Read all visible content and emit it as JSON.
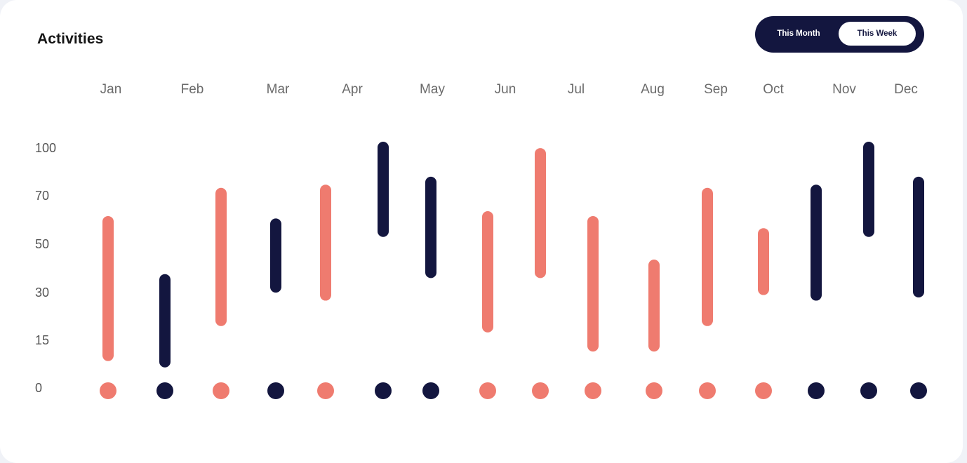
{
  "title": "Activities",
  "toggle": {
    "options": [
      "This Month",
      "This Week"
    ],
    "selected": "This Week"
  },
  "colors": {
    "coral": "#ef7b6f",
    "navy": "#13163f"
  },
  "chart_data": {
    "type": "range-bar",
    "title": "Activities",
    "x_labels": [
      "Jan",
      "Feb",
      "Mar",
      "Apr",
      "May",
      "Jun",
      "Jul",
      "Aug",
      "Sep",
      "Oct",
      "Nov",
      "Dec"
    ],
    "y_ticks": [
      0,
      15,
      30,
      50,
      70,
      100
    ],
    "bars": [
      {
        "low": 10,
        "high": 59,
        "color": "coral"
      },
      {
        "low": 8,
        "high": 35,
        "color": "navy"
      },
      {
        "low": 21,
        "high": 71,
        "color": "coral"
      },
      {
        "low": 32,
        "high": 58,
        "color": "navy"
      },
      {
        "low": 29,
        "high": 73,
        "color": "coral"
      },
      {
        "low": 55,
        "high": 100,
        "color": "navy"
      },
      {
        "low": 38,
        "high": 78,
        "color": "navy"
      },
      {
        "low": 19,
        "high": 61,
        "color": "coral"
      },
      {
        "low": 38,
        "high": 96,
        "color": "coral"
      },
      {
        "low": 13,
        "high": 59,
        "color": "coral"
      },
      {
        "low": 13,
        "high": 41,
        "color": "coral"
      },
      {
        "low": 21,
        "high": 71,
        "color": "coral"
      },
      {
        "low": 31,
        "high": 54,
        "color": "coral"
      },
      {
        "low": 29,
        "high": 73,
        "color": "navy"
      },
      {
        "low": 55,
        "high": 100,
        "color": "navy"
      },
      {
        "low": 30,
        "high": 78,
        "color": "navy"
      }
    ],
    "dots": [
      "coral",
      "navy",
      "coral",
      "navy",
      "coral",
      "navy",
      "navy",
      "coral",
      "coral",
      "coral",
      "coral",
      "coral",
      "coral",
      "navy",
      "navy",
      "navy"
    ],
    "grid": false,
    "legend": false
  }
}
